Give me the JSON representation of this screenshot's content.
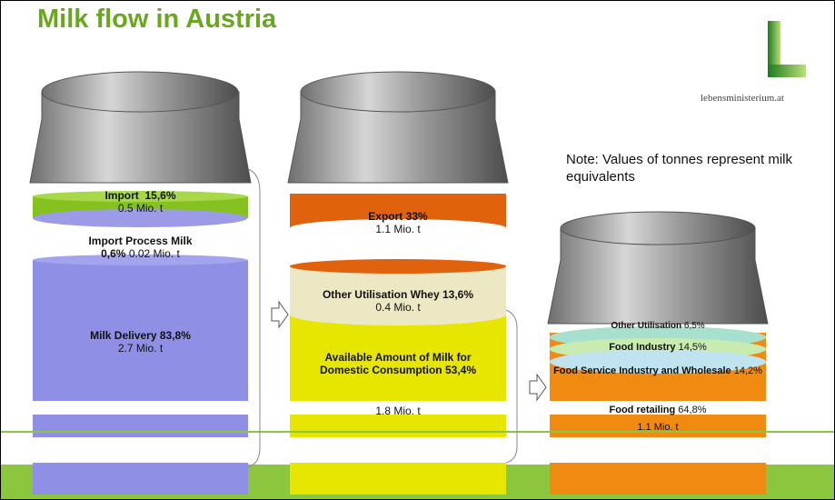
{
  "title": "Milk flow in Austria",
  "logo": "lebensministerium.at",
  "note": "Note: Values of tonnes represent milk equivalents",
  "columns": [
    {
      "segments": [
        {
          "name": "Import",
          "share": "15,6%",
          "amount": "0.5 Mio. t"
        },
        {
          "name": "Import Process Milk",
          "share": "0,6%",
          "amount": "0.02 Mio. t"
        },
        {
          "name": "Milk Delivery",
          "share": "83,8%",
          "amount": "2.7 Mio. t"
        }
      ]
    },
    {
      "segments": [
        {
          "name": "Export",
          "share": "33%",
          "amount": "1.1 Mio. t"
        },
        {
          "name": "Other Utilisation Whey",
          "share": "13,6%",
          "amount": "0.4 Mio. t"
        },
        {
          "name": "Available Amount of Milk for Domestic Consumption",
          "share": "53,4%",
          "amount": "1.8 Mio. t"
        }
      ]
    },
    {
      "segments": [
        {
          "name": "Other Utilisation",
          "share": "6,5%"
        },
        {
          "name": "Food Industry",
          "share": "14,5%"
        },
        {
          "name": "Food Service Industry and Wholesale",
          "share": "14,2%"
        },
        {
          "name": "Food retailing",
          "share": "64,8%",
          "amount": "1.1 Mio. t"
        }
      ]
    }
  ]
}
